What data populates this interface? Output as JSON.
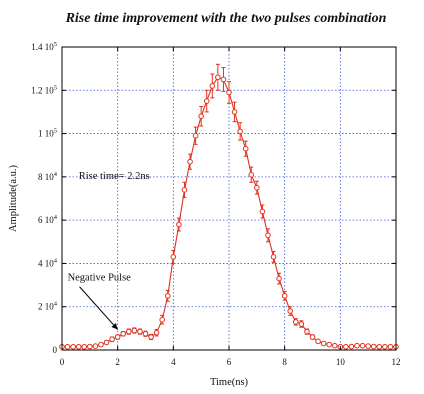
{
  "chart_data": {
    "type": "line",
    "title": "Rise time improvement with the two pulses combination",
    "xlabel": "Time(ns)",
    "ylabel": "Amplitude(a.u.)",
    "xlim": [
      0,
      12
    ],
    "ylim": [
      0,
      140000
    ],
    "x_ticks": [
      0,
      2,
      4,
      6,
      8,
      10,
      12
    ],
    "y_ticks": [
      0,
      20000,
      40000,
      60000,
      80000,
      100000,
      120000,
      140000
    ],
    "x_tick_labels": [
      "0",
      "2",
      "4",
      "6",
      "8",
      "10",
      "12"
    ],
    "y_tick_labels": [
      {
        "mant": "0",
        "exp": ""
      },
      {
        "mant": "2 10",
        "exp": "4"
      },
      {
        "mant": "4 10",
        "exp": "4"
      },
      {
        "mant": "6 10",
        "exp": "4"
      },
      {
        "mant": "8 10",
        "exp": "4"
      },
      {
        "mant": "1 10",
        "exp": "5"
      },
      {
        "mant": "1.2 10",
        "exp": "5"
      },
      {
        "mant": "1.4 10",
        "exp": "5"
      }
    ],
    "grid": true,
    "annotations": [
      {
        "text": "Rise time= 2.2ns",
        "x": 0.6,
        "y": 79000
      },
      {
        "text": "Negative Pulse",
        "x": 0.2,
        "y": 32000,
        "arrow_to_x": 2.0,
        "arrow_to_y": 9500
      }
    ],
    "series": [
      {
        "x": [
          0.0,
          0.2,
          0.4,
          0.6,
          0.8,
          1.0,
          1.2,
          1.4,
          1.6,
          1.8,
          2.0,
          2.2,
          2.4,
          2.6,
          2.8,
          3.0,
          3.2,
          3.4,
          3.6,
          3.8,
          4.0,
          4.2,
          4.4,
          4.6,
          4.8,
          5.0,
          5.2,
          5.4,
          5.6,
          5.8,
          6.0,
          6.2,
          6.4,
          6.6,
          6.8,
          7.0,
          7.2,
          7.4,
          7.6,
          7.8,
          8.0,
          8.2,
          8.4,
          8.6,
          8.8,
          9.0,
          9.2,
          9.4,
          9.6,
          9.8,
          10.0,
          10.2,
          10.4,
          10.6,
          10.8,
          11.0,
          11.2,
          11.4,
          11.6,
          11.8,
          12.0
        ],
        "y": [
          1500,
          1500,
          1500,
          1500,
          1500,
          1600,
          1800,
          2500,
          3500,
          5000,
          6000,
          7500,
          8500,
          9000,
          8500,
          7500,
          6000,
          8000,
          14000,
          25000,
          43000,
          58000,
          74000,
          87000,
          99000,
          108000,
          115000,
          122000,
          126000,
          125000,
          119000,
          110000,
          101000,
          93000,
          81000,
          75000,
          64000,
          53000,
          43000,
          33000,
          25000,
          18000,
          13000,
          12000,
          8500,
          6000,
          4000,
          3000,
          2500,
          2000,
          1500,
          1500,
          1600,
          2000,
          2000,
          1800,
          1600,
          1500,
          1500,
          1500,
          1500
        ],
        "err": [
          500,
          500,
          500,
          500,
          500,
          500,
          500,
          700,
          800,
          1000,
          1000,
          1000,
          1200,
          1200,
          1200,
          1200,
          1200,
          1500,
          2000,
          2500,
          3000,
          3000,
          3500,
          3500,
          4000,
          4500,
          5000,
          5500,
          6000,
          5500,
          5000,
          4500,
          4000,
          3500,
          3500,
          3000,
          3000,
          3000,
          2500,
          2500,
          2000,
          2000,
          1500,
          1500,
          1200,
          1000,
          800,
          700,
          600,
          500,
          500,
          500,
          500,
          500,
          500,
          500,
          500,
          500,
          500,
          500,
          500
        ]
      }
    ]
  }
}
